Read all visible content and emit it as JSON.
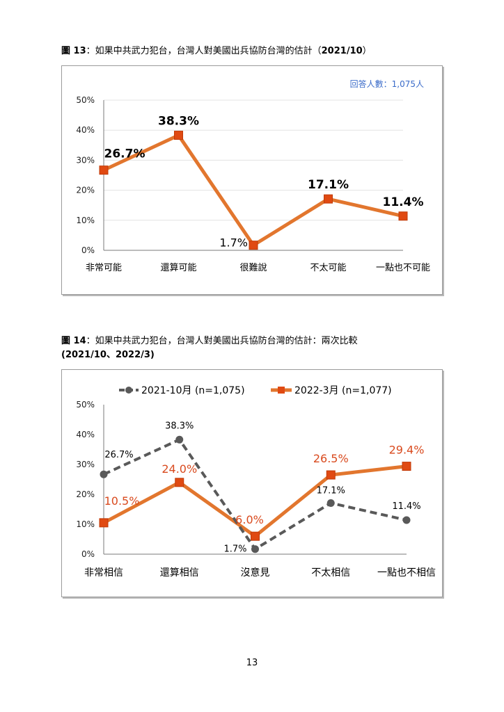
{
  "chart13": {
    "caption_num": "圖 13",
    "caption_text": "：如果中共武力犯台，台灣人對美國出兵協防台灣的估計（",
    "caption_date": "2021/10",
    "caption_end": "）",
    "note": "回答人數：1,075人"
  },
  "chart14": {
    "caption_num": "圖 14",
    "caption_text": "：如果中共武力犯台，台灣人對美國出兵協防台灣的估計：兩次比較",
    "caption_line2": "(2021/10、2022/3)"
  },
  "page_number": "13",
  "colors": {
    "orange": "#E2762E",
    "marker_red": "#E04A12",
    "gray": "#595959",
    "label_red": "#D94A1E",
    "note_blue": "#3A6BC9"
  },
  "chart_data": [
    {
      "type": "line",
      "categories": [
        "非常可能",
        "還算可能",
        "很難說",
        "不太可能",
        "一點也不可能"
      ],
      "series": [
        {
          "values": [
            26.7,
            38.3,
            1.7,
            17.1,
            11.4
          ],
          "labels": [
            "26.7%",
            "38.3%",
            "1.7%",
            "17.1%",
            "11.4%"
          ]
        }
      ],
      "yticks": [
        "50%",
        "40%",
        "30%",
        "20%",
        "10%",
        "0%"
      ],
      "ylim": [
        0,
        50
      ],
      "grid": true,
      "legend": "none"
    },
    {
      "type": "line",
      "categories": [
        "非常相信",
        "還算相信",
        "沒意見",
        "不太相信",
        "一點也不相信"
      ],
      "series": [
        {
          "name": "2021-10月 (n=1,075)",
          "values": [
            26.7,
            38.3,
            1.7,
            17.1,
            11.4
          ],
          "labels": [
            "26.7%",
            "38.3%",
            "1.7%",
            "17.1%",
            "11.4%"
          ],
          "style": "dashed",
          "marker": "circle"
        },
        {
          "name": "2022-3月 (n=1,077)",
          "values": [
            10.5,
            24.0,
            6.0,
            26.5,
            29.4
          ],
          "labels": [
            "10.5%",
            "24.0%",
            "6.0%",
            "26.5%",
            "29.4%"
          ],
          "style": "solid",
          "marker": "square"
        }
      ],
      "yticks": [
        "50%",
        "40%",
        "30%",
        "20%",
        "10%",
        "0%"
      ],
      "ylim": [
        0,
        50
      ],
      "grid": false,
      "legend": "top-center"
    }
  ]
}
